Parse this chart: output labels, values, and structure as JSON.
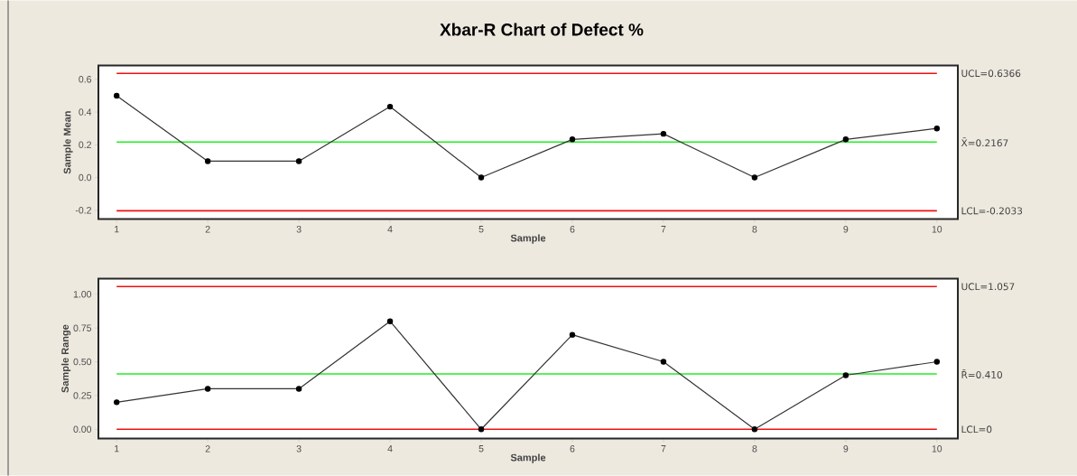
{
  "chart_data": [
    {
      "type": "line",
      "title": "Xbar-R Chart of Defect %",
      "xlabel": "Sample",
      "ylabel": "Sample Mean",
      "x": [
        1,
        2,
        3,
        4,
        5,
        6,
        7,
        8,
        9,
        10
      ],
      "values": [
        0.5,
        0.1,
        0.1,
        0.433,
        0,
        0.233,
        0.267,
        0,
        0.233,
        0.3
      ],
      "color": "#333333",
      "marker": "circle",
      "line_style": "solid",
      "xlim": [
        0.8,
        10.23
      ],
      "ylim": [
        -0.254,
        0.684
      ],
      "xticks": [
        1,
        2,
        3,
        4,
        5,
        6,
        7,
        8,
        9,
        10
      ],
      "yticks": [
        -0.2,
        {
          "value": 0,
          "label": "0.0"
        },
        0.2,
        0.4,
        0.6
      ],
      "ref_lines": [
        {
          "axis": "y",
          "value": 0.6366,
          "label": "UCL=0.6366",
          "color": "#ee1111"
        },
        {
          "axis": "y",
          "value": 0.2167,
          "label": "X̄=0.2167",
          "color": "#22ee22"
        },
        {
          "axis": "y",
          "value": -0.2033,
          "label": "LCL=-0.2033",
          "color": "#ee1111"
        }
      ]
    },
    {
      "type": "line",
      "xlabel": "Sample",
      "ylabel": "Sample Range",
      "x": [
        1,
        2,
        3,
        4,
        5,
        6,
        7,
        8,
        9,
        10
      ],
      "values": [
        0.2,
        0.3,
        0.3,
        0.8,
        0,
        0.7,
        0.5,
        0,
        0.4,
        0.5
      ],
      "color": "#333333",
      "marker": "circle",
      "line_style": "solid",
      "xlim": [
        0.8,
        10.23
      ],
      "ylim": [
        -0.069,
        1.115
      ],
      "xticks": [
        1,
        2,
        3,
        4,
        5,
        6,
        7,
        8,
        9,
        10
      ],
      "yticks": [
        {
          "value": 0,
          "label": "0.00"
        },
        {
          "value": 0.25,
          "label": "0.25"
        },
        {
          "value": 0.5,
          "label": "0.50"
        },
        {
          "value": 0.75,
          "label": "0.75"
        },
        {
          "value": 1,
          "label": "1.00"
        }
      ],
      "ref_lines": [
        {
          "axis": "y",
          "value": 1.057,
          "label": "UCL=1.057",
          "color": "#ee1111"
        },
        {
          "axis": "y",
          "value": 0.41,
          "label": "R̄=0.410",
          "color": "#22ee22"
        },
        {
          "axis": "y",
          "value": 0,
          "label": "LCL=0",
          "color": "#ee1111"
        }
      ]
    }
  ]
}
